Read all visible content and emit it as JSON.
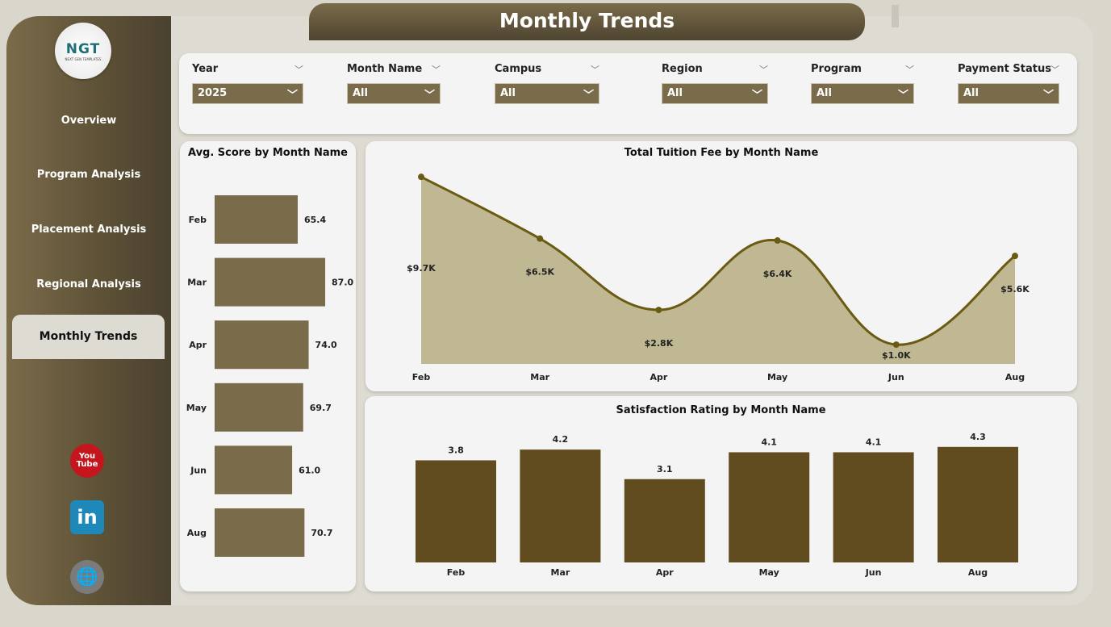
{
  "header": {
    "title": "Monthly Trends"
  },
  "sidebar": {
    "logo": "NGT",
    "logo_sub": "NEXT GEN TEMPLATES",
    "items": [
      {
        "label": "Overview"
      },
      {
        "label": "Program Analysis"
      },
      {
        "label": "Placement Analysis"
      },
      {
        "label": "Regional Analysis"
      },
      {
        "label": "Monthly Trends",
        "active": true
      }
    ],
    "social": [
      "youtube-icon",
      "linkedin-icon",
      "globe-www-icon"
    ]
  },
  "filters": [
    {
      "label": "Year",
      "value": "2025"
    },
    {
      "label": "Month Name",
      "value": "All"
    },
    {
      "label": "Campus",
      "value": "All"
    },
    {
      "label": "Region",
      "value": "All"
    },
    {
      "label": "Program",
      "value": "All"
    },
    {
      "label": "Payment Status",
      "value": "All"
    }
  ],
  "colors": {
    "brand": "#7a6b4a",
    "area": "#bfb892",
    "line": "#6b5a12",
    "bar_dark": "#614c1f"
  },
  "chart_data": [
    {
      "type": "bar",
      "orientation": "horizontal",
      "title": "Avg. Score by Month Name",
      "categories": [
        "Feb",
        "Mar",
        "Apr",
        "May",
        "Jun",
        "Aug"
      ],
      "values": [
        65.4,
        87.0,
        74.0,
        69.7,
        61.0,
        70.7
      ],
      "labels": [
        "65.4",
        "87.0",
        "74.0",
        "69.7",
        "61.0",
        "70.7"
      ]
    },
    {
      "type": "area",
      "title": "Total Tuition Fee by Month Name",
      "categories": [
        "Feb",
        "Mar",
        "Apr",
        "May",
        "Jun",
        "Aug"
      ],
      "values": [
        9700,
        6500,
        2800,
        6400,
        1000,
        5600
      ],
      "labels": [
        "$9.7K",
        "$6.5K",
        "$2.8K",
        "$6.4K",
        "$1.0K",
        "$5.6K"
      ]
    },
    {
      "type": "bar",
      "title": "Satisfaction Rating by Month Name",
      "categories": [
        "Feb",
        "Mar",
        "Apr",
        "May",
        "Jun",
        "Aug"
      ],
      "values": [
        3.8,
        4.2,
        3.1,
        4.1,
        4.1,
        4.3
      ],
      "labels": [
        "3.8",
        "4.2",
        "3.1",
        "4.1",
        "4.1",
        "4.3"
      ]
    }
  ]
}
